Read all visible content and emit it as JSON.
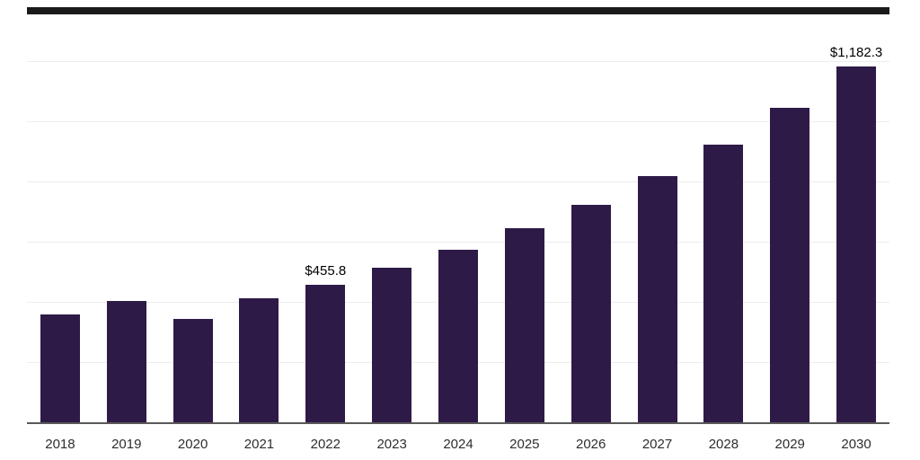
{
  "page": {
    "background_color": "#ffffff",
    "top_strip_color": "#1a1a1a"
  },
  "chart_data": {
    "type": "bar",
    "title": "",
    "xlabel": "",
    "ylabel": "",
    "categories": [
      "2018",
      "2019",
      "2020",
      "2021",
      "2022",
      "2023",
      "2024",
      "2025",
      "2026",
      "2027",
      "2028",
      "2029",
      "2030"
    ],
    "values": [
      357,
      402,
      344,
      412,
      455.8,
      512,
      572,
      646,
      723,
      818,
      922,
      1046,
      1182.3
    ],
    "bar_color": "#2e1a47",
    "ylim": [
      0,
      1200
    ],
    "grid": true,
    "grid_step": 200,
    "gridline_color": "#ededed",
    "axis_line_color": "#595959",
    "legend_position": "none",
    "annotations": [
      {
        "category": "2022",
        "text": "$455.8"
      },
      {
        "category": "2030",
        "text": "$1,182.3"
      }
    ]
  }
}
